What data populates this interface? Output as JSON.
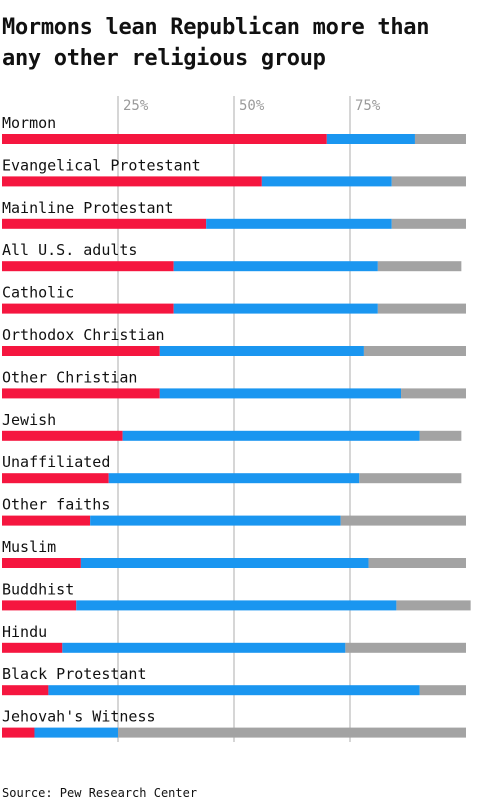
{
  "title": "Mormons lean Republican more than any other religious group",
  "source": "Source: Pew Research Center",
  "colors": {
    "republican": "#f5163f",
    "democrat": "#1a96f0",
    "none": "#a3a3a3",
    "gridline": "#c8c8c8"
  },
  "chart_data": {
    "type": "bar",
    "orientation": "horizontal",
    "stacked": true,
    "title": "Mormons lean Republican more than any other religious group",
    "xlim": [
      0,
      100
    ],
    "x_ticks": [
      "25%",
      "50%",
      "75%"
    ],
    "x_tick_values": [
      25,
      50,
      75
    ],
    "grid": true,
    "categories": [
      "Mormon",
      "Evangelical Protestant",
      "Mainline Protestant",
      "All U.S. adults",
      "Catholic",
      "Orthodox Christian",
      "Other Christian",
      "Jewish",
      "Unaffiliated",
      "Other faiths",
      "Muslim",
      "Buddhist",
      "Hindu",
      "Black Protestant",
      "Jehovah's Witness"
    ],
    "series": [
      {
        "values": [
          70,
          56,
          44,
          37,
          37,
          34,
          34,
          26,
          23,
          19,
          17,
          16,
          13,
          10,
          7
        ]
      },
      {
        "values": [
          19,
          28,
          40,
          44,
          44,
          44,
          52,
          64,
          54,
          54,
          62,
          69,
          61,
          80,
          18
        ]
      },
      {
        "values": [
          11,
          16,
          16,
          18,
          19,
          22,
          14,
          9,
          22,
          27,
          21,
          16,
          26,
          10,
          75
        ]
      }
    ]
  }
}
